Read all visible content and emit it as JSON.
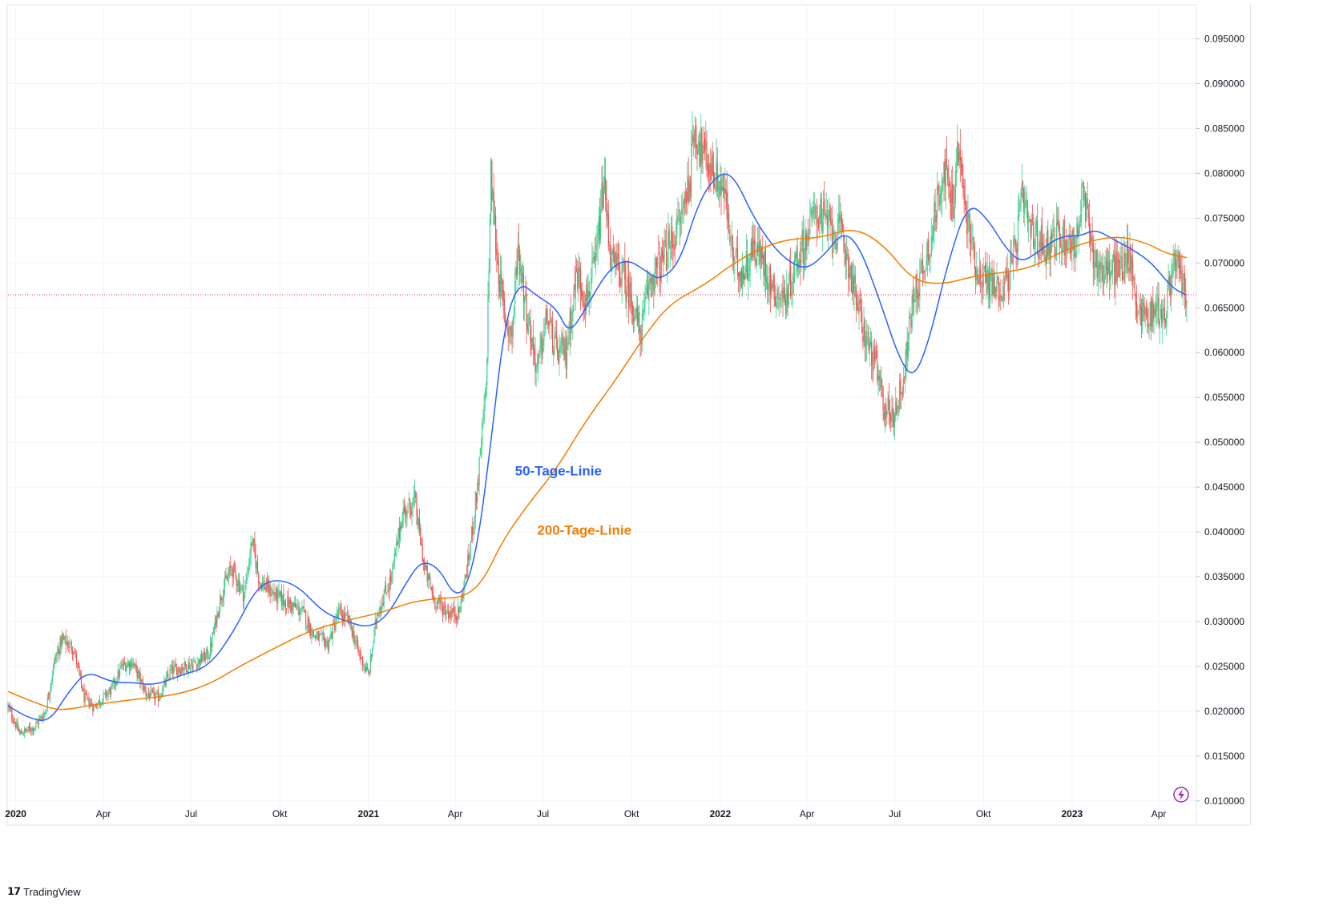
{
  "brand": {
    "name": "TradingView",
    "icon": "tradingview-logo-icon"
  },
  "colors": {
    "up": "#26a69a",
    "up_light": "#3fcf8e",
    "down": "#ef5350",
    "ma50": "#2962ff",
    "ma200": "#f57c00",
    "last_price_line": "#f23645",
    "grid": "#f0f3fa",
    "axis_text": "#131722"
  },
  "chart_data": {
    "type": "candlestick",
    "instrument": "",
    "y_axis": {
      "ticks": [
        "0.095000",
        "0.090000",
        "0.085000",
        "0.080000",
        "0.075000",
        "0.070000",
        "0.065000",
        "0.060000",
        "0.055000",
        "0.050000",
        "0.045000",
        "0.040000",
        "0.035000",
        "0.030000",
        "0.025000",
        "0.020000",
        "0.015000",
        "0.010000"
      ],
      "ylim": [
        0.0098,
        0.0988
      ],
      "scale": "linear",
      "position": "right"
    },
    "x_axis": {
      "ticks": [
        {
          "date": "2020-01-01",
          "label": "2020",
          "year": true
        },
        {
          "date": "2020-04-01",
          "label": "Apr"
        },
        {
          "date": "2020-07-01",
          "label": "Jul"
        },
        {
          "date": "2020-10-01",
          "label": "Okt"
        },
        {
          "date": "2021-01-01",
          "label": "2021",
          "year": true
        },
        {
          "date": "2021-04-01",
          "label": "Apr"
        },
        {
          "date": "2021-07-01",
          "label": "Jul"
        },
        {
          "date": "2021-10-01",
          "label": "Okt"
        },
        {
          "date": "2022-01-01",
          "label": "2022",
          "year": true
        },
        {
          "date": "2022-04-01",
          "label": "Apr"
        },
        {
          "date": "2022-07-01",
          "label": "Jul"
        },
        {
          "date": "2022-10-01",
          "label": "Okt"
        },
        {
          "date": "2023-01-01",
          "label": "2023",
          "year": true
        },
        {
          "date": "2023-04-01",
          "label": "Apr"
        }
      ],
      "range": [
        "2019-12-24",
        "2023-05-10"
      ]
    },
    "grid": true,
    "last_price": 0.06645,
    "price_path": [
      [
        "2019-12-24",
        0.0205
      ],
      [
        "2020-01-05",
        0.0175
      ],
      [
        "2020-01-20",
        0.0182
      ],
      [
        "2020-02-01",
        0.02
      ],
      [
        "2020-02-10",
        0.0255
      ],
      [
        "2020-02-18",
        0.028
      ],
      [
        "2020-03-01",
        0.027
      ],
      [
        "2020-03-12",
        0.0215
      ],
      [
        "2020-03-22",
        0.0205
      ],
      [
        "2020-04-10",
        0.0225
      ],
      [
        "2020-04-20",
        0.025
      ],
      [
        "2020-05-01",
        0.0255
      ],
      [
        "2020-05-15",
        0.022
      ],
      [
        "2020-05-28",
        0.0215
      ],
      [
        "2020-06-10",
        0.0245
      ],
      [
        "2020-06-25",
        0.025
      ],
      [
        "2020-07-08",
        0.0255
      ],
      [
        "2020-07-20",
        0.0265
      ],
      [
        "2020-08-01",
        0.033
      ],
      [
        "2020-08-12",
        0.036
      ],
      [
        "2020-08-25",
        0.033
      ],
      [
        "2020-09-02",
        0.039
      ],
      [
        "2020-09-10",
        0.0345
      ],
      [
        "2020-09-25",
        0.033
      ],
      [
        "2020-10-10",
        0.032
      ],
      [
        "2020-10-25",
        0.031
      ],
      [
        "2020-11-05",
        0.0285
      ],
      [
        "2020-11-20",
        0.0275
      ],
      [
        "2020-12-01",
        0.031
      ],
      [
        "2020-12-12",
        0.03
      ],
      [
        "2020-12-22",
        0.0265
      ],
      [
        "2021-01-01",
        0.024
      ],
      [
        "2021-01-10",
        0.031
      ],
      [
        "2021-01-25",
        0.035
      ],
      [
        "2021-02-05",
        0.042
      ],
      [
        "2021-02-18",
        0.0435
      ],
      [
        "2021-02-28",
        0.036
      ],
      [
        "2021-03-10",
        0.0325
      ],
      [
        "2021-03-25",
        0.031
      ],
      [
        "2021-04-05",
        0.031
      ],
      [
        "2021-04-15",
        0.037
      ],
      [
        "2021-04-25",
        0.046
      ],
      [
        "2021-05-03",
        0.056
      ],
      [
        "2021-05-08",
        0.0795
      ],
      [
        "2021-05-15",
        0.07
      ],
      [
        "2021-05-22",
        0.064
      ],
      [
        "2021-05-30",
        0.062
      ],
      [
        "2021-06-05",
        0.072
      ],
      [
        "2021-06-15",
        0.064
      ],
      [
        "2021-06-25",
        0.058
      ],
      [
        "2021-07-05",
        0.064
      ],
      [
        "2021-07-15",
        0.06
      ],
      [
        "2021-07-25",
        0.06
      ],
      [
        "2021-08-05",
        0.069
      ],
      [
        "2021-08-15",
        0.066
      ],
      [
        "2021-08-25",
        0.07
      ],
      [
        "2021-09-02",
        0.079
      ],
      [
        "2021-09-10",
        0.07
      ],
      [
        "2021-09-20",
        0.069
      ],
      [
        "2021-10-01",
        0.066
      ],
      [
        "2021-10-10",
        0.062
      ],
      [
        "2021-10-20",
        0.068
      ],
      [
        "2021-11-01",
        0.07
      ],
      [
        "2021-11-10",
        0.072
      ],
      [
        "2021-11-20",
        0.0745
      ],
      [
        "2021-12-01",
        0.08
      ],
      [
        "2021-12-05",
        0.085
      ],
      [
        "2021-12-15",
        0.082
      ],
      [
        "2021-12-28",
        0.0795
      ],
      [
        "2022-01-05",
        0.078
      ],
      [
        "2022-01-15",
        0.07
      ],
      [
        "2022-01-25",
        0.069
      ],
      [
        "2022-02-05",
        0.072
      ],
      [
        "2022-02-15",
        0.07
      ],
      [
        "2022-02-25",
        0.067
      ],
      [
        "2022-03-10",
        0.066
      ],
      [
        "2022-03-20",
        0.07
      ],
      [
        "2022-04-01",
        0.073
      ],
      [
        "2022-04-10",
        0.076
      ],
      [
        "2022-04-25",
        0.074
      ],
      [
        "2022-05-08",
        0.073
      ],
      [
        "2022-05-18",
        0.068
      ],
      [
        "2022-05-28",
        0.063
      ],
      [
        "2022-06-10",
        0.059
      ],
      [
        "2022-06-20",
        0.054
      ],
      [
        "2022-06-30",
        0.053
      ],
      [
        "2022-07-10",
        0.057
      ],
      [
        "2022-07-20",
        0.066
      ],
      [
        "2022-08-01",
        0.07
      ],
      [
        "2022-08-10",
        0.074
      ],
      [
        "2022-08-20",
        0.081
      ],
      [
        "2022-08-30",
        0.076
      ],
      [
        "2022-09-05",
        0.083
      ],
      [
        "2022-09-12",
        0.076
      ],
      [
        "2022-09-25",
        0.069
      ],
      [
        "2022-10-05",
        0.068
      ],
      [
        "2022-10-20",
        0.067
      ],
      [
        "2022-11-01",
        0.07
      ],
      [
        "2022-11-10",
        0.077
      ],
      [
        "2022-11-20",
        0.073
      ],
      [
        "2022-12-05",
        0.072
      ],
      [
        "2022-12-20",
        0.073
      ],
      [
        "2023-01-05",
        0.072
      ],
      [
        "2023-01-12",
        0.0775
      ],
      [
        "2023-01-25",
        0.07
      ],
      [
        "2023-02-05",
        0.069
      ],
      [
        "2023-02-20",
        0.0695
      ],
      [
        "2023-03-01",
        0.071
      ],
      [
        "2023-03-10",
        0.065
      ],
      [
        "2023-03-20",
        0.064
      ],
      [
        "2023-03-30",
        0.065
      ],
      [
        "2023-04-08",
        0.064
      ],
      [
        "2023-04-15",
        0.07
      ],
      [
        "2023-04-22",
        0.069
      ],
      [
        "2023-04-30",
        0.06645
      ]
    ],
    "series": [
      {
        "name": "50-Tage-Linie",
        "color": "#2962ff",
        "points": [
          [
            "2019-12-24",
            0.0206
          ],
          [
            "2020-01-15",
            0.0192
          ],
          [
            "2020-02-05",
            0.0188
          ],
          [
            "2020-02-25",
            0.0222
          ],
          [
            "2020-03-15",
            0.0245
          ],
          [
            "2020-04-10",
            0.0232
          ],
          [
            "2020-05-01",
            0.0232
          ],
          [
            "2020-05-25",
            0.0229
          ],
          [
            "2020-06-20",
            0.024
          ],
          [
            "2020-07-20",
            0.025
          ],
          [
            "2020-08-15",
            0.029
          ],
          [
            "2020-09-05",
            0.0335
          ],
          [
            "2020-09-25",
            0.0348
          ],
          [
            "2020-10-20",
            0.034
          ],
          [
            "2020-11-15",
            0.031
          ],
          [
            "2020-12-10",
            0.03
          ],
          [
            "2020-12-31",
            0.0293
          ],
          [
            "2021-01-20",
            0.0305
          ],
          [
            "2021-02-10",
            0.0345
          ],
          [
            "2021-02-25",
            0.0368
          ],
          [
            "2021-03-15",
            0.036
          ],
          [
            "2021-03-30",
            0.033
          ],
          [
            "2021-04-12",
            0.0335
          ],
          [
            "2021-04-25",
            0.039
          ],
          [
            "2021-05-08",
            0.05
          ],
          [
            "2021-05-22",
            0.063
          ],
          [
            "2021-06-06",
            0.068
          ],
          [
            "2021-06-25",
            0.0663
          ],
          [
            "2021-07-15",
            0.065
          ],
          [
            "2021-07-28",
            0.062
          ],
          [
            "2021-08-15",
            0.065
          ],
          [
            "2021-09-05",
            0.069
          ],
          [
            "2021-09-25",
            0.0705
          ],
          [
            "2021-10-15",
            0.0692
          ],
          [
            "2021-10-30",
            0.068
          ],
          [
            "2021-11-20",
            0.07
          ],
          [
            "2021-12-10",
            0.077
          ],
          [
            "2021-12-30",
            0.08
          ],
          [
            "2022-01-15",
            0.0798
          ],
          [
            "2022-02-05",
            0.075
          ],
          [
            "2022-02-25",
            0.0718
          ],
          [
            "2022-03-15",
            0.07
          ],
          [
            "2022-04-01",
            0.0693
          ],
          [
            "2022-04-20",
            0.071
          ],
          [
            "2022-05-08",
            0.0735
          ],
          [
            "2022-05-25",
            0.072
          ],
          [
            "2022-06-15",
            0.066
          ],
          [
            "2022-07-05",
            0.0595
          ],
          [
            "2022-07-20",
            0.057
          ],
          [
            "2022-08-05",
            0.061
          ],
          [
            "2022-08-25",
            0.07
          ],
          [
            "2022-09-15",
            0.0768
          ],
          [
            "2022-10-05",
            0.075
          ],
          [
            "2022-10-25",
            0.0715
          ],
          [
            "2022-11-10",
            0.07
          ],
          [
            "2022-11-30",
            0.0715
          ],
          [
            "2022-12-20",
            0.073
          ],
          [
            "2023-01-10",
            0.073
          ],
          [
            "2023-01-25",
            0.0738
          ],
          [
            "2023-02-15",
            0.0725
          ],
          [
            "2023-03-05",
            0.0715
          ],
          [
            "2023-03-25",
            0.07
          ],
          [
            "2023-04-15",
            0.0672
          ],
          [
            "2023-04-30",
            0.0664
          ]
        ]
      },
      {
        "name": "200-Tage-Linie",
        "color": "#f57c00",
        "points": [
          [
            "2019-12-24",
            0.0222
          ],
          [
            "2020-01-20",
            0.021
          ],
          [
            "2020-02-15",
            0.02
          ],
          [
            "2020-03-20",
            0.0207
          ],
          [
            "2020-05-01",
            0.0213
          ],
          [
            "2020-06-15",
            0.0218
          ],
          [
            "2020-07-20",
            0.023
          ],
          [
            "2020-08-20",
            0.025
          ],
          [
            "2020-09-25",
            0.027
          ],
          [
            "2020-11-01",
            0.029
          ],
          [
            "2020-12-15",
            0.0303
          ],
          [
            "2021-01-15",
            0.031
          ],
          [
            "2021-02-15",
            0.0322
          ],
          [
            "2021-03-15",
            0.0326
          ],
          [
            "2021-04-10",
            0.0327
          ],
          [
            "2021-04-30",
            0.0345
          ],
          [
            "2021-05-20",
            0.039
          ],
          [
            "2021-06-15",
            0.043
          ],
          [
            "2021-07-15",
            0.047
          ],
          [
            "2021-08-15",
            0.0525
          ],
          [
            "2021-09-15",
            0.057
          ],
          [
            "2021-10-15",
            0.062
          ],
          [
            "2021-11-10",
            0.0655
          ],
          [
            "2021-12-15",
            0.0675
          ],
          [
            "2022-01-15",
            0.07
          ],
          [
            "2022-02-15",
            0.0718
          ],
          [
            "2022-03-15",
            0.0727
          ],
          [
            "2022-04-15",
            0.0728
          ],
          [
            "2022-05-20",
            0.074
          ],
          [
            "2022-06-20",
            0.072
          ],
          [
            "2022-07-20",
            0.068
          ],
          [
            "2022-08-20",
            0.0676
          ],
          [
            "2022-09-20",
            0.0685
          ],
          [
            "2022-10-20",
            0.0689
          ],
          [
            "2022-11-20",
            0.0695
          ],
          [
            "2022-12-20",
            0.0712
          ],
          [
            "2023-01-20",
            0.0725
          ],
          [
            "2023-02-20",
            0.073
          ],
          [
            "2023-03-20",
            0.0722
          ],
          [
            "2023-04-10",
            0.071
          ],
          [
            "2023-04-30",
            0.0706
          ]
        ]
      }
    ],
    "annotations": [
      {
        "text": "50-Tage-Linie",
        "color": "#2962ff",
        "anchor_date": "2021-06-02",
        "anchor_value": 0.0463
      },
      {
        "text": "200-Tage-Linie",
        "color": "#f57c00",
        "anchor_date": "2021-06-25",
        "anchor_value": 0.0397
      }
    ]
  }
}
